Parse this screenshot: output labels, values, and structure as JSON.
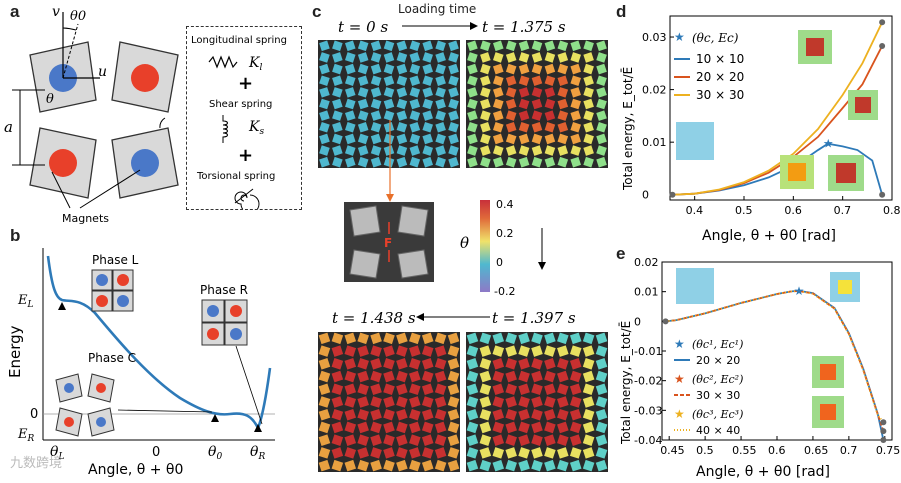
{
  "figure": {
    "panel_letters": [
      "a",
      "b",
      "c",
      "d",
      "e"
    ],
    "watermark": "九数跨境"
  },
  "panel_a": {
    "symbols": {
      "v": "v",
      "theta0": "θ0",
      "u": "u",
      "theta": "θ",
      "a": "a"
    },
    "springs": [
      {
        "label": "Longitudinal spring",
        "symbol": "K_l"
      },
      {
        "label": "Shear spring",
        "symbol": "K_s"
      },
      {
        "label": "Torsional spring",
        "symbol": ""
      }
    ],
    "magnets_label": "Magnets",
    "colors": {
      "red": "#e8402a",
      "blue": "#4a78c8",
      "square": "#d9d9d9"
    }
  },
  "panel_b": {
    "ylabel": "Energy",
    "xlabel": "Angle, θ + θ0",
    "y_ticks": [
      "E_L",
      "0",
      "E_R"
    ],
    "x_ticks": [
      "θ_L",
      "0",
      "θ0",
      "θ_R"
    ],
    "phases": [
      "Phase L",
      "Phase R",
      "Phase C"
    ],
    "curve_color": "#2e7ab8"
  },
  "panel_c": {
    "title": "Loading time",
    "times": [
      "t = 0 s",
      "t = 1.375 s",
      "t = 1.438 s",
      "t = 1.397 s"
    ],
    "inset_label": "F",
    "colorbar": {
      "label": "θ",
      "ticks": [
        "0.4",
        "0.2",
        "0",
        "-0.2"
      ],
      "range": [
        -0.25,
        0.45
      ]
    }
  },
  "panel_d": {
    "ylabel": "Total energy, E_tot/Ē",
    "xlabel": "Angle, θ + θ0 [rad]",
    "legend": [
      "(θc, Ec)",
      "10 × 10",
      "20 × 20",
      "30 × 30"
    ],
    "x_ticks": [
      "0.4",
      "0.5",
      "0.6",
      "0.7",
      "0.8"
    ],
    "y_ticks": [
      "0",
      "0.01",
      "0.02",
      "0.03"
    ]
  },
  "panel_e": {
    "ylabel": "Total energy, E_tot/Ē",
    "xlabel": "Angle, θ + θ0 [rad]",
    "legend": [
      "(θc¹, Ec¹)",
      "20 × 20",
      "(θc², Ec²)",
      "30 × 30",
      "(θc³, Ec³)",
      "40 × 40"
    ],
    "x_ticks": [
      "0.45",
      "0.5",
      "0.55",
      "0.6",
      "0.65",
      "0.7",
      "0.75"
    ],
    "y_ticks": [
      "0.02",
      "0.01",
      "0",
      "-0.01",
      "-0.02",
      "-0.03",
      "-0.04"
    ]
  },
  "chart_data": [
    {
      "type": "line",
      "panel": "d",
      "xlabel": "Angle, θ + θ0 [rad]",
      "ylabel": "Total energy, E_tot/Ē",
      "xlim": [
        0.35,
        0.8
      ],
      "ylim": [
        -0.001,
        0.034
      ],
      "series": [
        {
          "name": "10 × 10",
          "color": "#2e7ab8",
          "x": [
            0.355,
            0.4,
            0.45,
            0.5,
            0.55,
            0.6,
            0.63,
            0.65,
            0.67,
            0.7,
            0.73,
            0.76,
            0.78
          ],
          "y": [
            0,
            0.0002,
            0.0008,
            0.0018,
            0.0033,
            0.0055,
            0.0072,
            0.0085,
            0.0097,
            0.0092,
            0.0085,
            0.0065,
            0
          ]
        },
        {
          "name": "20 × 20",
          "color": "#d9541e",
          "x": [
            0.355,
            0.4,
            0.45,
            0.5,
            0.55,
            0.6,
            0.65,
            0.7,
            0.74,
            0.78
          ],
          "y": [
            0,
            0.0002,
            0.0009,
            0.0022,
            0.0042,
            0.0072,
            0.011,
            0.0165,
            0.021,
            0.0283
          ]
        },
        {
          "name": "30 × 30",
          "color": "#edb120",
          "x": [
            0.355,
            0.4,
            0.45,
            0.5,
            0.55,
            0.6,
            0.65,
            0.7,
            0.74,
            0.78
          ],
          "y": [
            0,
            0.0002,
            0.001,
            0.0024,
            0.0046,
            0.0078,
            0.0125,
            0.019,
            0.025,
            0.0328
          ]
        }
      ],
      "critical_point": {
        "x": 0.67,
        "y": 0.0097
      }
    },
    {
      "type": "line",
      "panel": "e",
      "xlabel": "Angle, θ + θ0 [rad]",
      "ylabel": "Total energy, E_tot/Ē",
      "xlim": [
        0.44,
        0.76
      ],
      "ylim": [
        -0.04,
        0.02
      ],
      "series": [
        {
          "name": "20 × 20",
          "color": "#2e7ab8",
          "x": [
            0.445,
            0.46,
            0.5,
            0.55,
            0.6,
            0.62,
            0.63,
            0.65,
            0.68,
            0.7,
            0.72,
            0.74,
            0.748
          ],
          "y": [
            0,
            0.0004,
            0.0027,
            0.0062,
            0.0092,
            0.0101,
            0.0103,
            0.0095,
            0.0045,
            -0.004,
            -0.016,
            -0.031,
            -0.04
          ]
        },
        {
          "name": "30 × 30",
          "color": "#d9541e",
          "x": [
            0.445,
            0.46,
            0.5,
            0.55,
            0.6,
            0.62,
            0.63,
            0.65,
            0.68,
            0.7,
            0.72,
            0.74,
            0.748
          ],
          "y": [
            0,
            0.0004,
            0.0027,
            0.0062,
            0.0092,
            0.0101,
            0.0102,
            0.0094,
            0.0043,
            -0.0042,
            -0.0163,
            -0.0312,
            -0.037
          ]
        },
        {
          "name": "40 × 40",
          "color": "#edb120",
          "x": [
            0.445,
            0.46,
            0.5,
            0.55,
            0.6,
            0.62,
            0.63,
            0.65,
            0.68,
            0.7,
            0.72,
            0.74,
            0.748
          ],
          "y": [
            0,
            0.0004,
            0.0027,
            0.0062,
            0.0092,
            0.0101,
            0.0102,
            0.0093,
            0.0042,
            -0.0044,
            -0.0165,
            -0.0315,
            -0.034
          ]
        }
      ],
      "critical_point": {
        "x": 0.63,
        "y": 0.0102
      }
    }
  ]
}
